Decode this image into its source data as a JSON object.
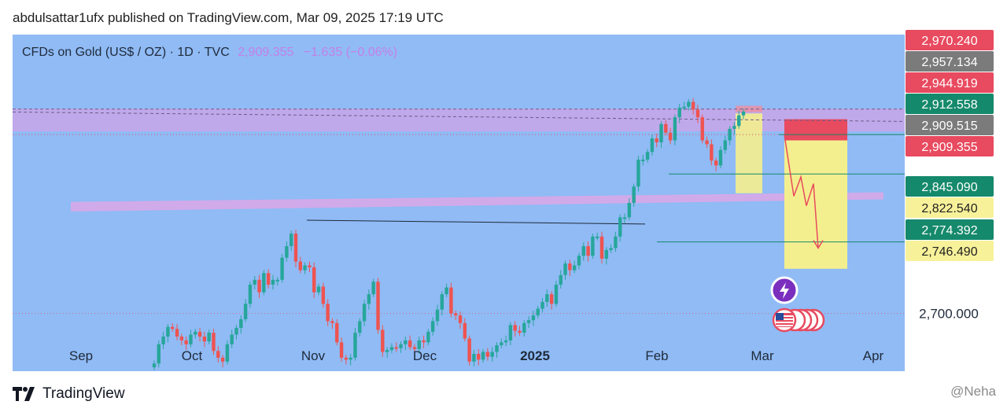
{
  "publisher_line": "abdulsattar1ufx published on TradingView.com, Mar 09, 2025 17:19 UTC",
  "legend": {
    "symbol": "CFDs on Gold (US$ / OZ) · 1D · TVC",
    "price": "2,909.355",
    "change": "−1.635 (−0.06%)"
  },
  "footer": {
    "brand": "TradingView",
    "credit": "@Neha"
  },
  "colors": {
    "up": "#26a69a",
    "down": "#ef5350",
    "background": "#90bbf5",
    "zone": "#c9a6e8",
    "target": "#f4ef8e"
  },
  "icons": {
    "logo": "tradingview-logo-icon",
    "lightning": "lightning-icon",
    "flag": "us-flag-icon"
  },
  "chart_data": {
    "type": "candlestick",
    "symbol": "CFDs on Gold (US$ / OZ)",
    "interval": "1D",
    "x_ticks": [
      "Sep",
      "Oct",
      "Nov",
      "Dec",
      "2025",
      "Feb",
      "Mar",
      "Apr"
    ],
    "ylim": [
      2640,
      2990
    ],
    "y_ticks": [
      2700
    ],
    "price_labels": [
      {
        "value": 2970.24,
        "text": "2,970.240",
        "color": "#e84a5f"
      },
      {
        "value": 2957.134,
        "text": "2,957.134",
        "color": "#7b7b7b"
      },
      {
        "value": 2944.919,
        "text": "2,944.919",
        "color": "#e84a5f"
      },
      {
        "value": 2912.558,
        "text": "2,912.558",
        "color": "#15896b"
      },
      {
        "value": 2909.515,
        "text": "2,909.515",
        "color": "#7b7b7b"
      },
      {
        "value": 2909.355,
        "text": "2,909.355",
        "color": "#e84a5f"
      },
      {
        "value": 2845.09,
        "text": "2,845.090",
        "color": "#15896b"
      },
      {
        "value": 2822.54,
        "text": "2,822.540",
        "color": "#f7f19a"
      },
      {
        "value": 2774.392,
        "text": "2,774.392",
        "color": "#15896b"
      },
      {
        "value": 2746.49,
        "text": "2,746.490",
        "color": "#f7f19a"
      }
    ],
    "candles_close": [
      2648,
      2668,
      2676,
      2686,
      2684,
      2676,
      2672,
      2668,
      2678,
      2681,
      2676,
      2671,
      2680,
      2661,
      2654,
      2650,
      2668,
      2678,
      2685,
      2694,
      2710,
      2730,
      2735,
      2722,
      2742,
      2730,
      2735,
      2735,
      2758,
      2770,
      2783,
      2754,
      2745,
      2750,
      2748,
      2722,
      2728,
      2710,
      2692,
      2690,
      2670,
      2654,
      2652,
      2654,
      2680,
      2692,
      2710,
      2720,
      2733,
      2683,
      2660,
      2662,
      2665,
      2664,
      2668,
      2672,
      2665,
      2663,
      2672,
      2670,
      2681,
      2692,
      2704,
      2720,
      2727,
      2700,
      2698,
      2690,
      2674,
      2650,
      2658,
      2652,
      2660,
      2655,
      2660,
      2667,
      2670,
      2672,
      2688,
      2682,
      2680,
      2690,
      2693,
      2698,
      2705,
      2712,
      2720,
      2710,
      2730,
      2740,
      2752,
      2745,
      2750,
      2760,
      2770,
      2760,
      2780,
      2780,
      2757,
      2766,
      2768,
      2780,
      2800,
      2800,
      2815,
      2832,
      2860,
      2860,
      2868,
      2882,
      2878,
      2897,
      2888,
      2880,
      2904,
      2914,
      2915,
      2920,
      2912,
      2904,
      2880,
      2876,
      2859,
      2854,
      2870,
      2880,
      2892,
      2895,
      2906,
      2910
    ]
  }
}
